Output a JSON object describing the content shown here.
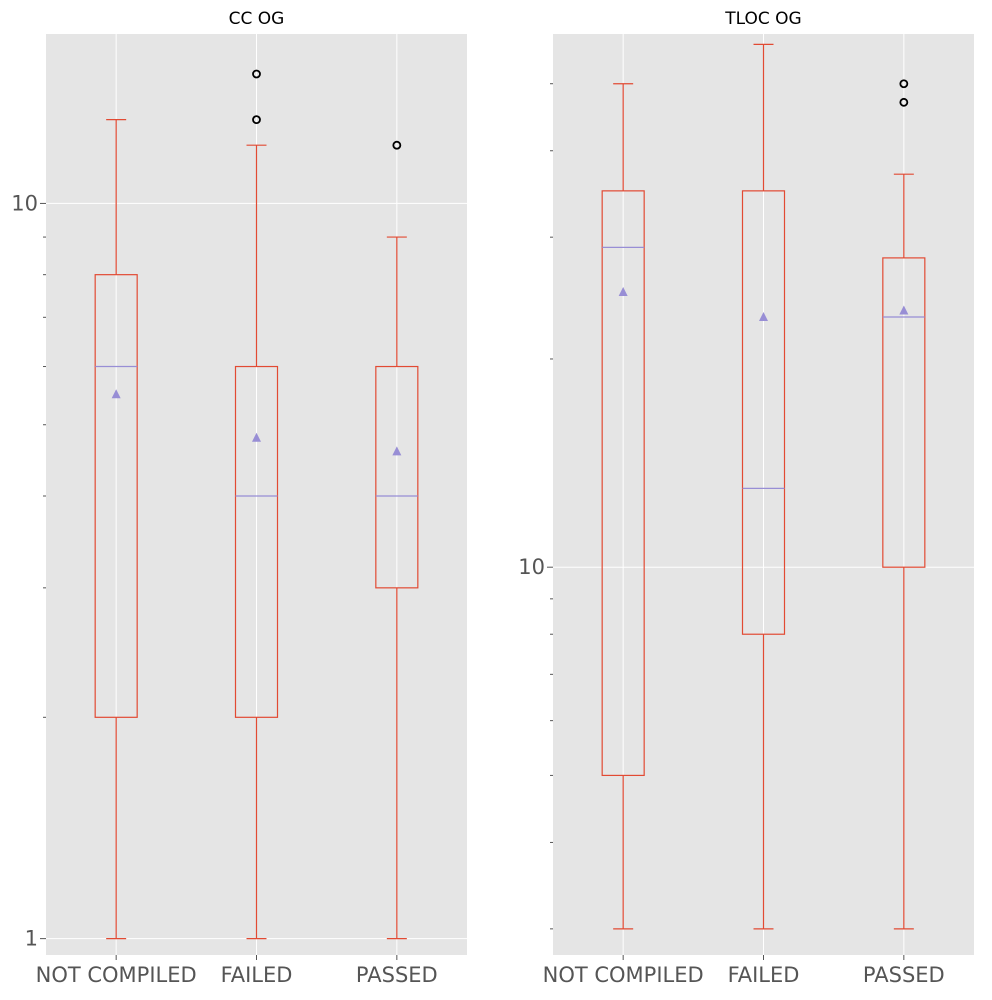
{
  "chart_data": [
    {
      "type": "box",
      "title": "CC OG",
      "categories": [
        "NOT COMPILED",
        "FAILED",
        "PASSED"
      ],
      "yscale": "log",
      "ylim": [
        0.95,
        17
      ],
      "yticks": [
        {
          "value": 1,
          "label": "1"
        },
        {
          "value": 10,
          "label": "10"
        }
      ],
      "boxes": [
        {
          "category": "NOT COMPILED",
          "whisker_low": 1,
          "q1": 2,
          "median": 6,
          "q3": 8,
          "whisker_high": 13,
          "mean": 5.5,
          "fliers": []
        },
        {
          "category": "FAILED",
          "whisker_low": 1,
          "q1": 2,
          "median": 4,
          "q3": 6,
          "whisker_high": 12,
          "mean": 4.8,
          "fliers": [
            13,
            15
          ]
        },
        {
          "category": "PASSED",
          "whisker_low": 1,
          "q1": 3,
          "median": 4,
          "q3": 6,
          "whisker_high": 9,
          "mean": 4.6,
          "fliers": [
            12
          ]
        }
      ]
    },
    {
      "type": "box",
      "title": "TLOC OG",
      "categories": [
        "NOT COMPILED",
        "FAILED",
        "PASSED"
      ],
      "yscale": "log",
      "ylim": [
        2.75,
        59
      ],
      "yticks": [
        {
          "value": 10,
          "label": "10"
        }
      ],
      "boxes": [
        {
          "category": "NOT COMPILED",
          "whisker_low": 3,
          "q1": 5,
          "median": 29,
          "q3": 35,
          "whisker_high": 50,
          "mean": 25,
          "fliers": []
        },
        {
          "category": "FAILED",
          "whisker_low": 3,
          "q1": 8,
          "median": 13,
          "q3": 35,
          "whisker_high": 57,
          "mean": 23,
          "fliers": []
        },
        {
          "category": "PASSED",
          "whisker_low": 3,
          "q1": 10,
          "median": 23,
          "q3": 28,
          "whisker_high": 37,
          "mean": 23.5,
          "fliers": [
            47,
            50
          ]
        }
      ]
    }
  ]
}
